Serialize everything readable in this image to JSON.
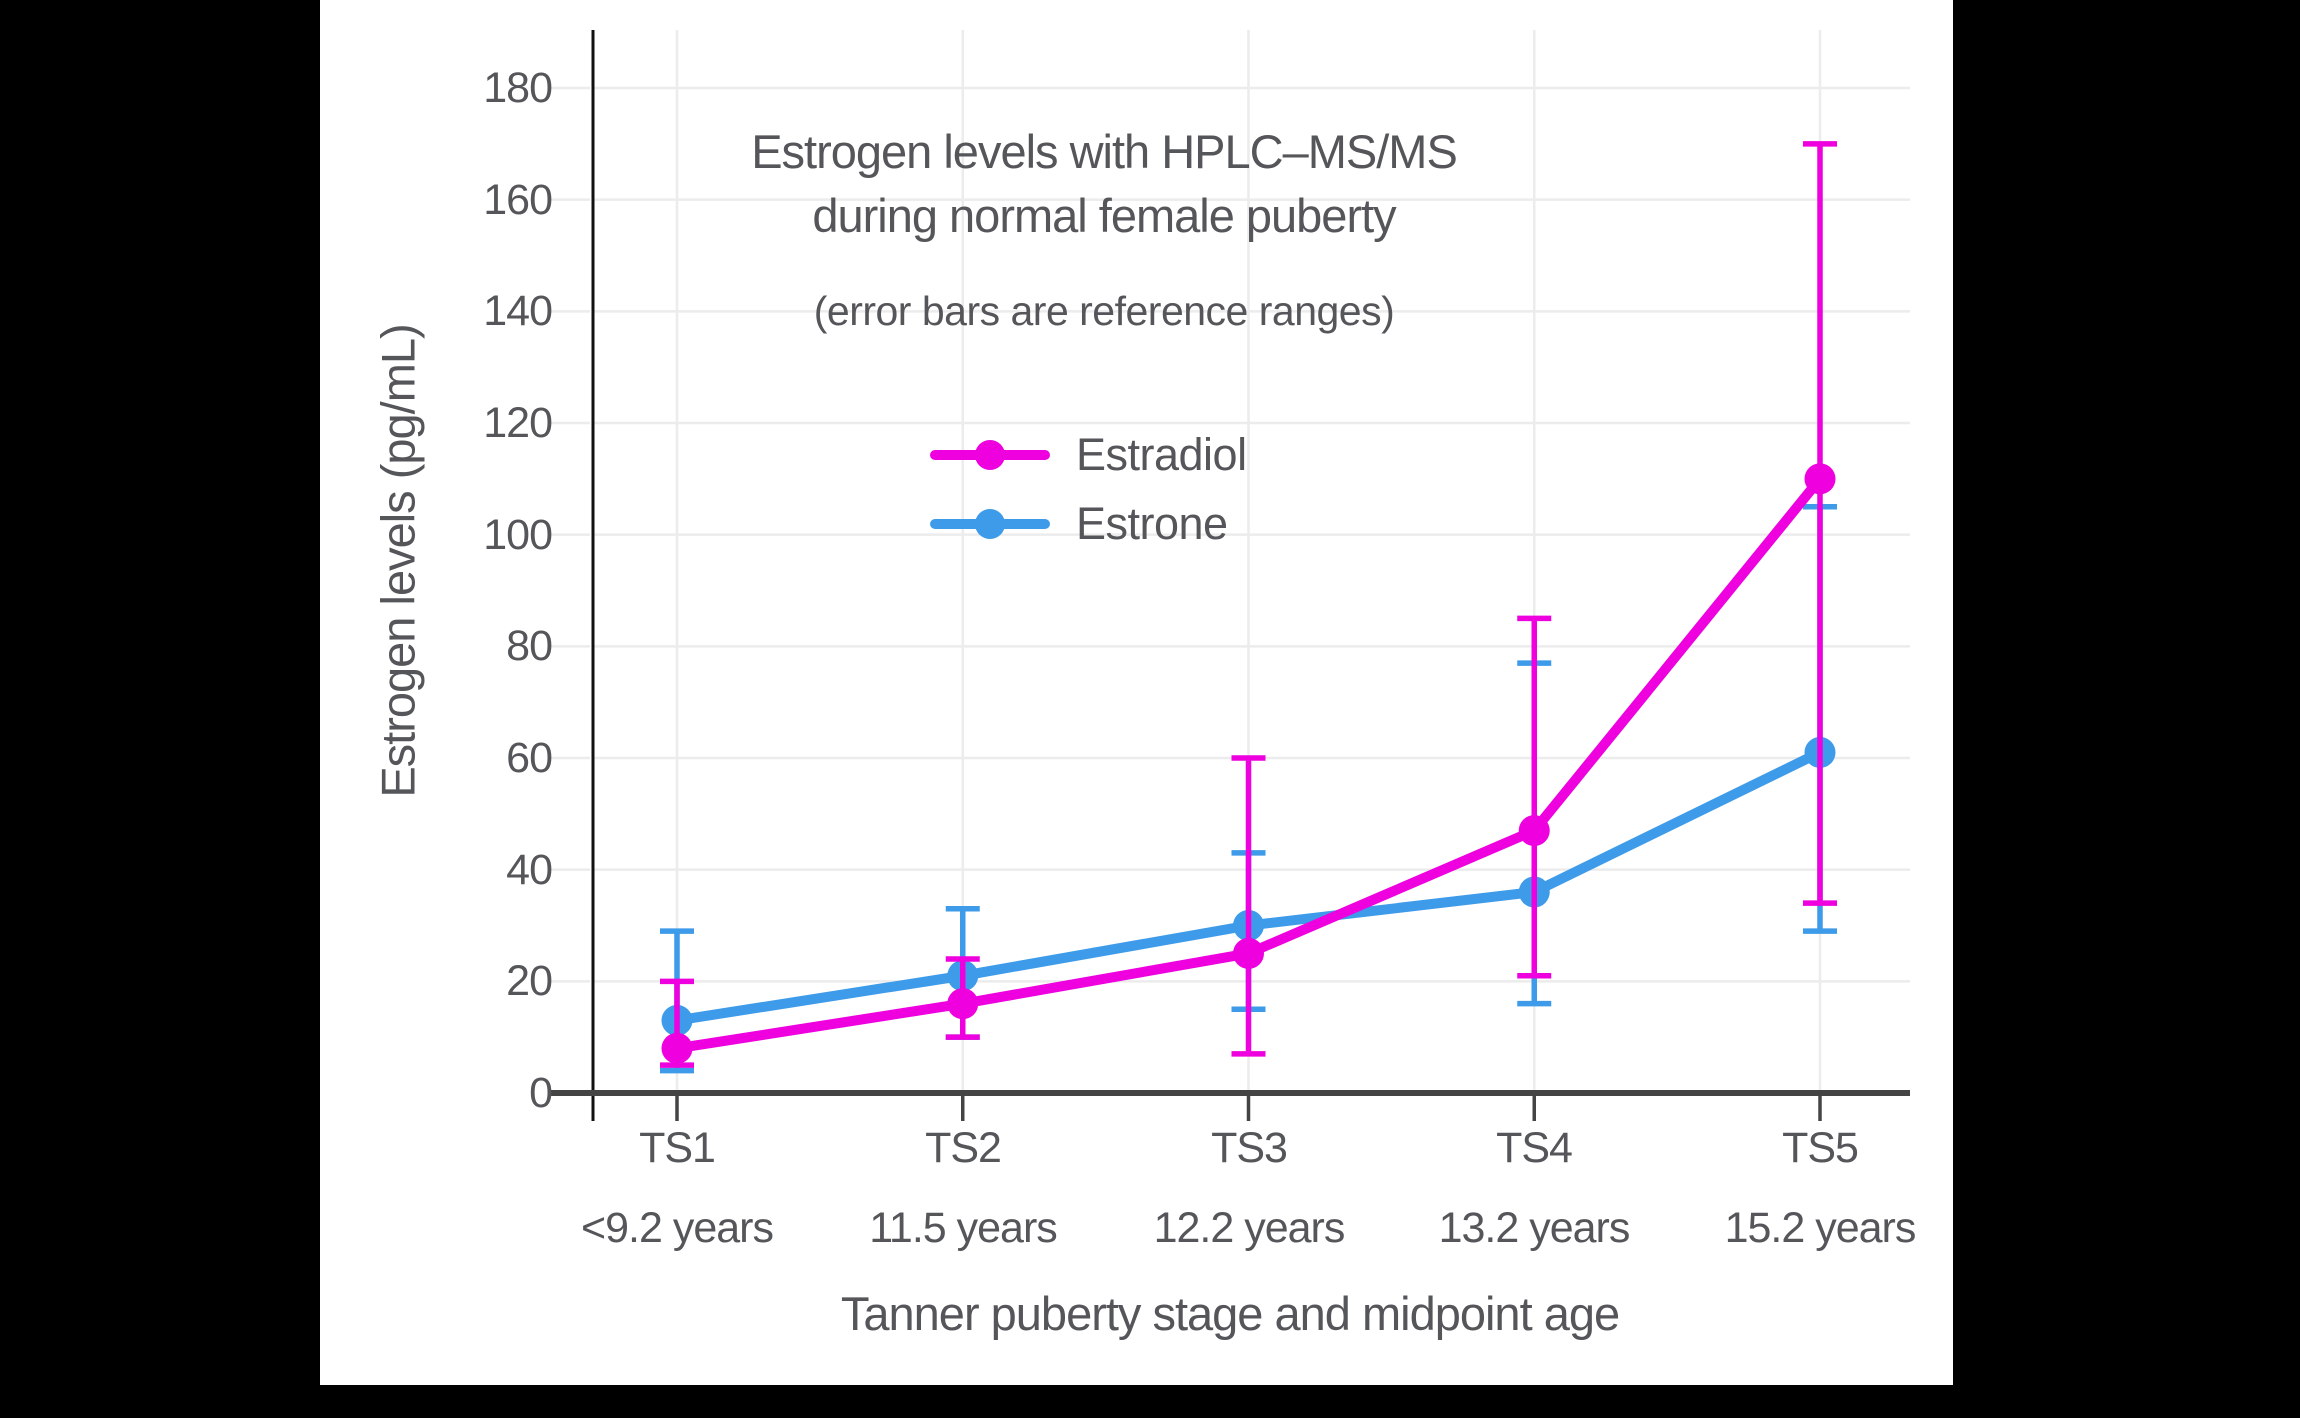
{
  "frame": {
    "background": "#000000",
    "panel_background": "#ffffff"
  },
  "colors": {
    "estradiol": "#EE00DF",
    "estrone": "#3D9BE9",
    "grid": "#ECECEC",
    "x_axis": "#444444",
    "y_axis_line": "#111111",
    "text": "#54565A"
  },
  "chart_data": {
    "type": "line",
    "title_line1": "Estrogen levels with HPLC–MS/MS",
    "title_line2": "during normal female puberty",
    "subtitle": "(error bars are reference ranges)",
    "xlabel": "Tanner puberty stage and midpoint age",
    "ylabel": "Estrogen levels (pg/mL)",
    "categories": [
      "TS1",
      "TS2",
      "TS3",
      "TS4",
      "TS5"
    ],
    "category_sublabels": [
      "<9.2 years",
      "11.5 years",
      "12.2 years",
      "13.2 years",
      "15.2 years"
    ],
    "ylim": [
      0,
      180
    ],
    "ytick_step": 20,
    "grid": true,
    "legend_position": "inside-upper-center",
    "error_bars": "reference ranges",
    "series": [
      {
        "name": "Estradiol",
        "color": "#EE00DF",
        "values": [
          8,
          16,
          25,
          47,
          110
        ],
        "error_low": [
          5,
          10,
          7,
          21,
          34
        ],
        "error_high": [
          20,
          24,
          60,
          85,
          170
        ]
      },
      {
        "name": "Estrone",
        "color": "#3D9BE9",
        "values": [
          13,
          21,
          30,
          36,
          61
        ],
        "error_low": [
          4,
          10,
          15,
          16,
          29
        ],
        "error_high": [
          29,
          33,
          43,
          77,
          105
        ]
      }
    ]
  }
}
